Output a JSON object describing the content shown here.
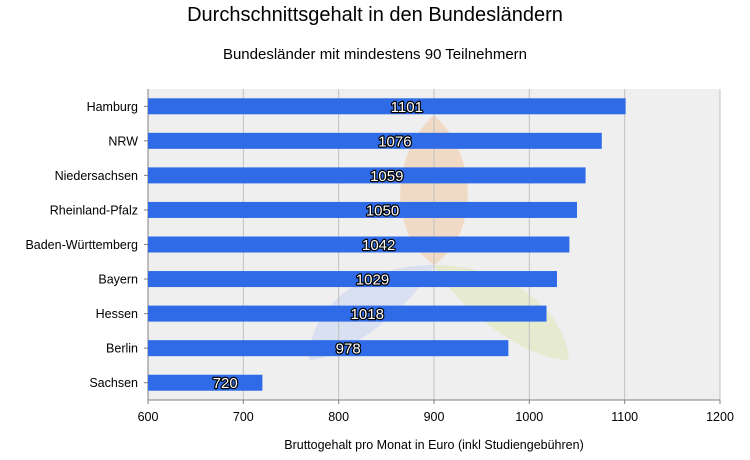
{
  "chart_data": {
    "type": "bar",
    "orientation": "horizontal",
    "title": "Durchschnittsgehalt in den Bundesländern",
    "subtitle": "Bundesländer mit mindestens 90 Teilnehmern",
    "xlabel": "Bruttogehalt pro Monat in Euro (inkl Studiengebühren)",
    "ylabel": "",
    "categories": [
      "Hamburg",
      "NRW",
      "Niedersachsen",
      "Rheinland-Pfalz",
      "Baden-Württemberg",
      "Bayern",
      "Hessen",
      "Berlin",
      "Sachsen"
    ],
    "values": [
      1101,
      1076,
      1059,
      1050,
      1042,
      1029,
      1018,
      978,
      720
    ],
    "data_labels": [
      "1101",
      "1076",
      "1059",
      "1050",
      "1042",
      "1029",
      "1018",
      "978",
      "720"
    ],
    "xlim": [
      600,
      1200
    ],
    "xticks": [
      600,
      700,
      800,
      900,
      1000,
      1100,
      1200
    ],
    "grid": "vertical",
    "legend": "none",
    "colors": {
      "bar": "#2f6be6",
      "plot_background": "#efefef",
      "gridline": "#c0c0c0",
      "axis": "#808080"
    }
  }
}
